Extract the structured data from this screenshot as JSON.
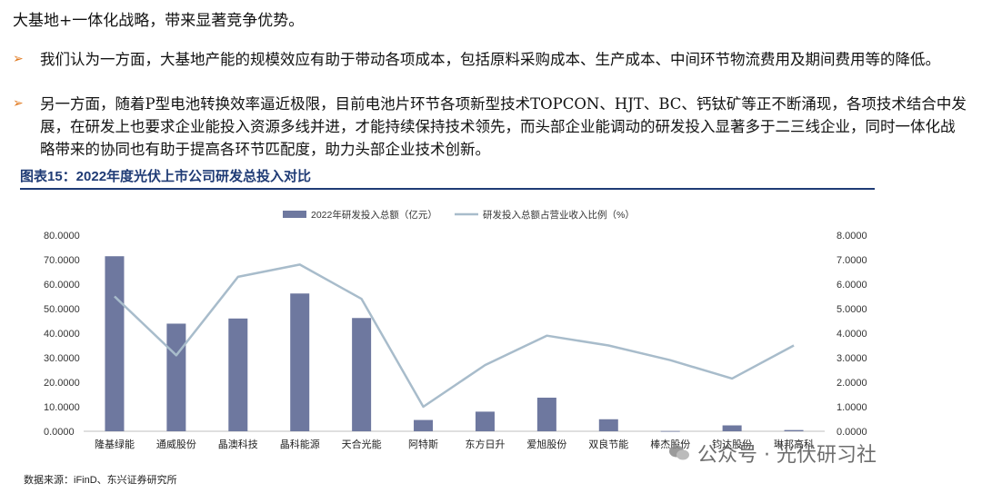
{
  "heading": "大基地+一体化战略，带来显著竞争优势。",
  "bullets": [
    "我们认为一方面，大基地产能的规模效应有助于带动各项成本，包括原料采购成本、生产成本、中间环节物流费用及期间费用等的降低。",
    "另一方面，随着P型电池转换效率逼近极限，目前电池片环节各项新型技术TOPCON、HJT、BC、钙钛矿等正不断涌现，各项技术结合中发展，在研发上也要求企业能投入资源多线并进，才能持续保持技术领先，而头部企业能调动的研发投入显著多于二三线企业，同时一体化战略带来的协同也有助于提高各环节匹配度，助力头部企业技术创新。"
  ],
  "figure_title": "图表15：2022年度光伏上市公司研发总投入对比",
  "source": "数据来源：iFinD、东兴证券研究所",
  "watermark": "公众号 · 光伏研习社",
  "colors": {
    "bar": "#6e789f",
    "line": "#a8bccb",
    "title": "#1f3b75",
    "arrow": "#e0781d"
  },
  "chart_data": {
    "type": "bar",
    "categories": [
      "隆基绿能",
      "通威股份",
      "晶澳科技",
      "晶科能源",
      "天合光能",
      "阿特斯",
      "东方日升",
      "爱旭股份",
      "双良节能",
      "棒杰股份",
      "钧达股份",
      "琳邦高科"
    ],
    "series": [
      {
        "name": "2022年研发投入总额（亿元）",
        "type": "bar",
        "axis": "left",
        "values": [
          71.4,
          43.9,
          46.0,
          56.2,
          46.2,
          4.6,
          8.0,
          13.7,
          4.9,
          0.1,
          2.4,
          0.5
        ]
      },
      {
        "name": "研发投入总额占营业收入比例（%）",
        "type": "line",
        "axis": "right",
        "values": [
          5.5,
          3.1,
          6.3,
          6.8,
          5.4,
          1.0,
          2.7,
          3.9,
          3.5,
          2.9,
          2.15,
          3.5
        ]
      }
    ],
    "y_left": {
      "lim": [
        0,
        80
      ],
      "ticks": [
        "0.0000",
        "10.0000",
        "20.0000",
        "30.0000",
        "40.0000",
        "50.0000",
        "60.0000",
        "70.0000",
        "80.0000"
      ]
    },
    "y_right": {
      "lim": [
        0,
        8
      ],
      "ticks": [
        "0.0000",
        "1.0000",
        "2.0000",
        "3.0000",
        "4.0000",
        "5.0000",
        "6.0000",
        "7.0000",
        "8.0000"
      ]
    },
    "legend_position": "top-center",
    "grid": false
  }
}
